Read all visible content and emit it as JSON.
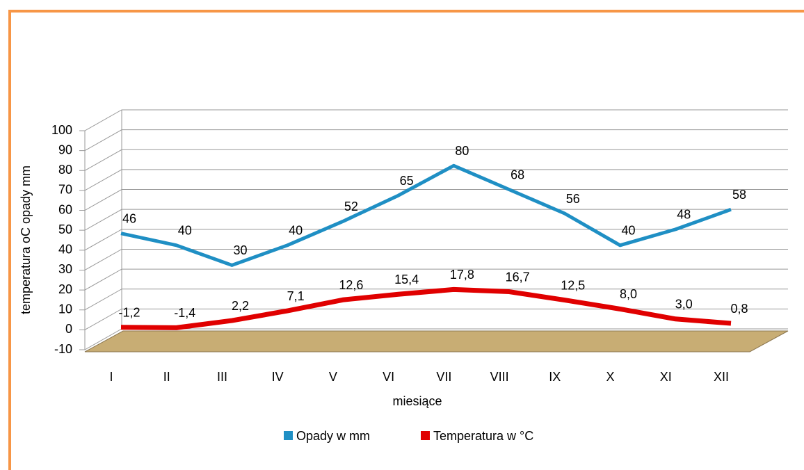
{
  "chart_data": {
    "type": "line",
    "categories": [
      "I",
      "II",
      "III",
      "IV",
      "V",
      "VI",
      "VII",
      "VIII",
      "IX",
      "X",
      "XI",
      "XII"
    ],
    "series": [
      {
        "name": "Opady w mm",
        "color": "#1f8fc4",
        "values": [
          46,
          40,
          30,
          40,
          52,
          65,
          80,
          68,
          56,
          40,
          48,
          58
        ]
      },
      {
        "name": "Temperatura w °C",
        "color": "#e00000",
        "values": [
          -1.2,
          -1.4,
          2.2,
          7.1,
          12.6,
          15.4,
          17.8,
          16.7,
          12.5,
          8.0,
          3.0,
          0.8
        ],
        "value_labels": [
          "-1,2",
          "-1,4",
          "2,2",
          "7,1",
          "12,6",
          "15,4",
          "17,8",
          "16,7",
          "12,5",
          "8,0",
          "3,0",
          "0,8"
        ]
      }
    ],
    "ylim": [
      -10,
      100
    ],
    "yticks": [
      -10,
      0,
      10,
      20,
      30,
      40,
      50,
      60,
      70,
      80,
      90,
      100
    ],
    "x_label": "miesiące",
    "y_label": "temperatura oC  opady mm",
    "grid": true,
    "legend": "bottom"
  }
}
